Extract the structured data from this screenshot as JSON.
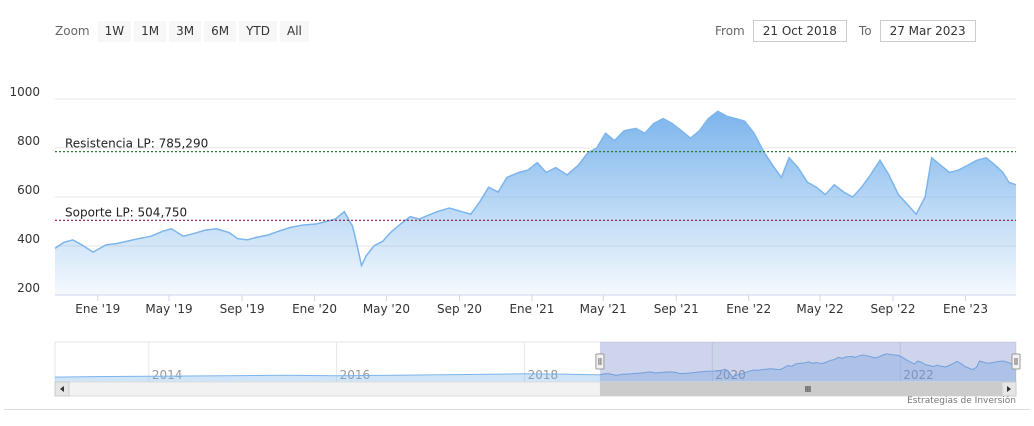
{
  "toolbar": {
    "zoom_label": "Zoom",
    "zoom_buttons": [
      "1W",
      "1M",
      "3M",
      "6M",
      "YTD",
      "All"
    ],
    "from_label": "From",
    "from_value": "21 Oct 2018",
    "to_label": "To",
    "to_value": "27 Mar 2023"
  },
  "watermark": "Estrategias de Inversión",
  "colors": {
    "series_line": "#7cb5ec",
    "resistance_line": "#2e7d32",
    "support_line": "#8b1a3a",
    "navigator_mask": "#5b6fbe"
  },
  "chart_data": {
    "type": "area",
    "y_ticks": [
      200,
      400,
      600,
      800,
      1000
    ],
    "ylim": [
      200,
      1000
    ],
    "x_tick_labels": [
      {
        "date": "2019-01-01",
        "label": "Ene '19"
      },
      {
        "date": "2019-05-01",
        "label": "May '19"
      },
      {
        "date": "2019-09-01",
        "label": "Sep '19"
      },
      {
        "date": "2020-01-01",
        "label": "Ene '20"
      },
      {
        "date": "2020-05-01",
        "label": "May '20"
      },
      {
        "date": "2020-09-01",
        "label": "Sep '20"
      },
      {
        "date": "2021-01-01",
        "label": "Ene '21"
      },
      {
        "date": "2021-05-01",
        "label": "May '21"
      },
      {
        "date": "2021-09-01",
        "label": "Sep '21"
      },
      {
        "date": "2022-01-01",
        "label": "Ene '22"
      },
      {
        "date": "2022-05-01",
        "label": "May '22"
      },
      {
        "date": "2022-09-01",
        "label": "Sep '22"
      },
      {
        "date": "2023-01-01",
        "label": "Ene '23"
      }
    ],
    "xlim": [
      "2018-10-21",
      "2023-03-27"
    ],
    "grid": true,
    "annotations": [
      {
        "label": "Resistencia LP: 785,290",
        "value": 785.29
      },
      {
        "label": "Soporte LP: 504,750",
        "value": 504.75
      }
    ],
    "series": [
      {
        "points": [
          [
            "2018-10-21",
            390
          ],
          [
            "2018-11-05",
            415
          ],
          [
            "2018-11-20",
            425
          ],
          [
            "2018-12-05",
            405
          ],
          [
            "2018-12-24",
            375
          ],
          [
            "2019-01-15",
            405
          ],
          [
            "2019-02-01",
            410
          ],
          [
            "2019-02-20",
            420
          ],
          [
            "2019-03-10",
            430
          ],
          [
            "2019-04-01",
            440
          ],
          [
            "2019-04-20",
            460
          ],
          [
            "2019-05-05",
            470
          ],
          [
            "2019-05-25",
            440
          ],
          [
            "2019-06-10",
            450
          ],
          [
            "2019-07-01",
            465
          ],
          [
            "2019-07-20",
            470
          ],
          [
            "2019-08-10",
            455
          ],
          [
            "2019-08-25",
            430
          ],
          [
            "2019-09-10",
            425
          ],
          [
            "2019-09-25",
            435
          ],
          [
            "2019-10-15",
            445
          ],
          [
            "2019-11-01",
            460
          ],
          [
            "2019-11-20",
            475
          ],
          [
            "2019-12-10",
            485
          ],
          [
            "2020-01-05",
            490
          ],
          [
            "2020-01-20",
            500
          ],
          [
            "2020-02-05",
            510
          ],
          [
            "2020-02-20",
            540
          ],
          [
            "2020-03-05",
            480
          ],
          [
            "2020-03-12",
            410
          ],
          [
            "2020-03-20",
            320
          ],
          [
            "2020-03-28",
            360
          ],
          [
            "2020-04-10",
            400
          ],
          [
            "2020-04-25",
            420
          ],
          [
            "2020-05-10",
            460
          ],
          [
            "2020-05-25",
            490
          ],
          [
            "2020-06-10",
            520
          ],
          [
            "2020-06-25",
            510
          ],
          [
            "2020-07-10",
            525
          ],
          [
            "2020-07-25",
            540
          ],
          [
            "2020-08-15",
            555
          ],
          [
            "2020-09-05",
            540
          ],
          [
            "2020-09-20",
            530
          ],
          [
            "2020-10-05",
            580
          ],
          [
            "2020-10-20",
            640
          ],
          [
            "2020-11-05",
            620
          ],
          [
            "2020-11-20",
            680
          ],
          [
            "2020-12-10",
            700
          ],
          [
            "2020-12-25",
            710
          ],
          [
            "2021-01-10",
            740
          ],
          [
            "2021-01-25",
            700
          ],
          [
            "2021-02-10",
            720
          ],
          [
            "2021-03-01",
            690
          ],
          [
            "2021-03-20",
            730
          ],
          [
            "2021-04-05",
            780
          ],
          [
            "2021-04-20",
            800
          ],
          [
            "2021-05-05",
            860
          ],
          [
            "2021-05-20",
            830
          ],
          [
            "2021-06-05",
            870
          ],
          [
            "2021-06-25",
            880
          ],
          [
            "2021-07-10",
            860
          ],
          [
            "2021-07-25",
            900
          ],
          [
            "2021-08-10",
            920
          ],
          [
            "2021-08-25",
            900
          ],
          [
            "2021-09-10",
            870
          ],
          [
            "2021-09-25",
            840
          ],
          [
            "2021-10-10",
            870
          ],
          [
            "2021-10-25",
            920
          ],
          [
            "2021-11-10",
            950
          ],
          [
            "2021-11-25",
            930
          ],
          [
            "2021-12-10",
            920
          ],
          [
            "2021-12-25",
            910
          ],
          [
            "2022-01-10",
            860
          ],
          [
            "2022-01-25",
            790
          ],
          [
            "2022-02-10",
            730
          ],
          [
            "2022-02-25",
            680
          ],
          [
            "2022-03-10",
            760
          ],
          [
            "2022-03-25",
            720
          ],
          [
            "2022-04-10",
            660
          ],
          [
            "2022-04-25",
            640
          ],
          [
            "2022-05-10",
            610
          ],
          [
            "2022-05-25",
            650
          ],
          [
            "2022-06-10",
            620
          ],
          [
            "2022-06-25",
            600
          ],
          [
            "2022-07-10",
            640
          ],
          [
            "2022-07-25",
            690
          ],
          [
            "2022-08-10",
            750
          ],
          [
            "2022-08-25",
            690
          ],
          [
            "2022-09-10",
            610
          ],
          [
            "2022-09-25",
            570
          ],
          [
            "2022-10-10",
            530
          ],
          [
            "2022-10-25",
            600
          ],
          [
            "2022-11-05",
            760
          ],
          [
            "2022-11-20",
            730
          ],
          [
            "2022-12-05",
            700
          ],
          [
            "2022-12-20",
            710
          ],
          [
            "2023-01-05",
            730
          ],
          [
            "2023-01-20",
            750
          ],
          [
            "2023-02-05",
            760
          ],
          [
            "2023-02-20",
            730
          ],
          [
            "2023-03-05",
            700
          ],
          [
            "2023-03-15",
            660
          ],
          [
            "2023-03-27",
            650
          ]
        ]
      }
    ],
    "navigator": {
      "tick_labels": [
        {
          "date": "2014-01-01",
          "label": "2014"
        },
        {
          "date": "2016-01-01",
          "label": "2016"
        },
        {
          "date": "2018-01-01",
          "label": "2018"
        },
        {
          "date": "2020-01-01",
          "label": "2020"
        },
        {
          "date": "2022-01-01",
          "label": "2022"
        }
      ],
      "range": [
        "2013-01-01",
        "2023-03-27"
      ],
      "selected": [
        "2018-10-21",
        "2023-03-27"
      ],
      "history_points": [
        [
          "2013-01-01",
          330
        ],
        [
          "2013-06-01",
          345
        ],
        [
          "2014-01-01",
          355
        ],
        [
          "2014-06-01",
          360
        ],
        [
          "2015-01-01",
          370
        ],
        [
          "2015-06-01",
          380
        ],
        [
          "2016-01-01",
          365
        ],
        [
          "2016-06-01",
          375
        ],
        [
          "2017-01-01",
          390
        ],
        [
          "2017-06-01",
          400
        ],
        [
          "2018-01-01",
          420
        ],
        [
          "2018-06-01",
          410
        ],
        [
          "2018-10-21",
          390
        ]
      ]
    }
  }
}
